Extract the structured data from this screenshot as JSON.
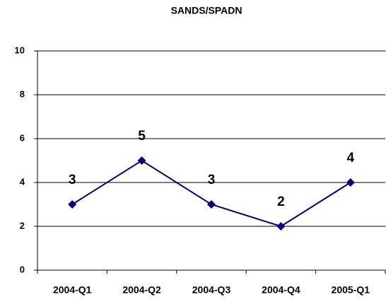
{
  "chart_data": {
    "type": "line",
    "title": "SANDS/SPADN",
    "categories": [
      "2004-Q1",
      "2004-Q2",
      "2004-Q3",
      "2004-Q4",
      "2005-Q1"
    ],
    "values": [
      3,
      5,
      3,
      2,
      4
    ],
    "color": "#000080",
    "ylim": [
      0,
      10
    ],
    "yticks": [
      0,
      2,
      4,
      6,
      8,
      10
    ],
    "grid": true
  }
}
